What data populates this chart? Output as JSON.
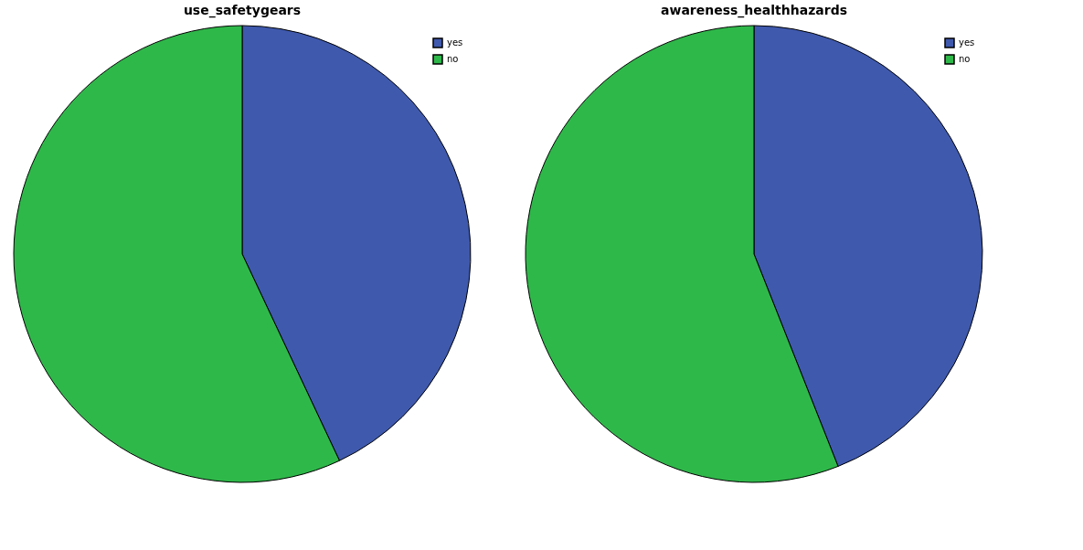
{
  "chart_data": [
    {
      "type": "pie",
      "title": "use_safetygears",
      "categories": [
        "yes",
        "no"
      ],
      "values": [
        43,
        57
      ],
      "colors": [
        "#3f59ad",
        "#2fb84a"
      ],
      "legend": "top right"
    },
    {
      "type": "pie",
      "title": "awareness_healthhazards",
      "categories": [
        "yes",
        "no"
      ],
      "values": [
        44,
        56
      ],
      "colors": [
        "#3f59ad",
        "#2fb84a"
      ],
      "legend": "top right"
    }
  ]
}
